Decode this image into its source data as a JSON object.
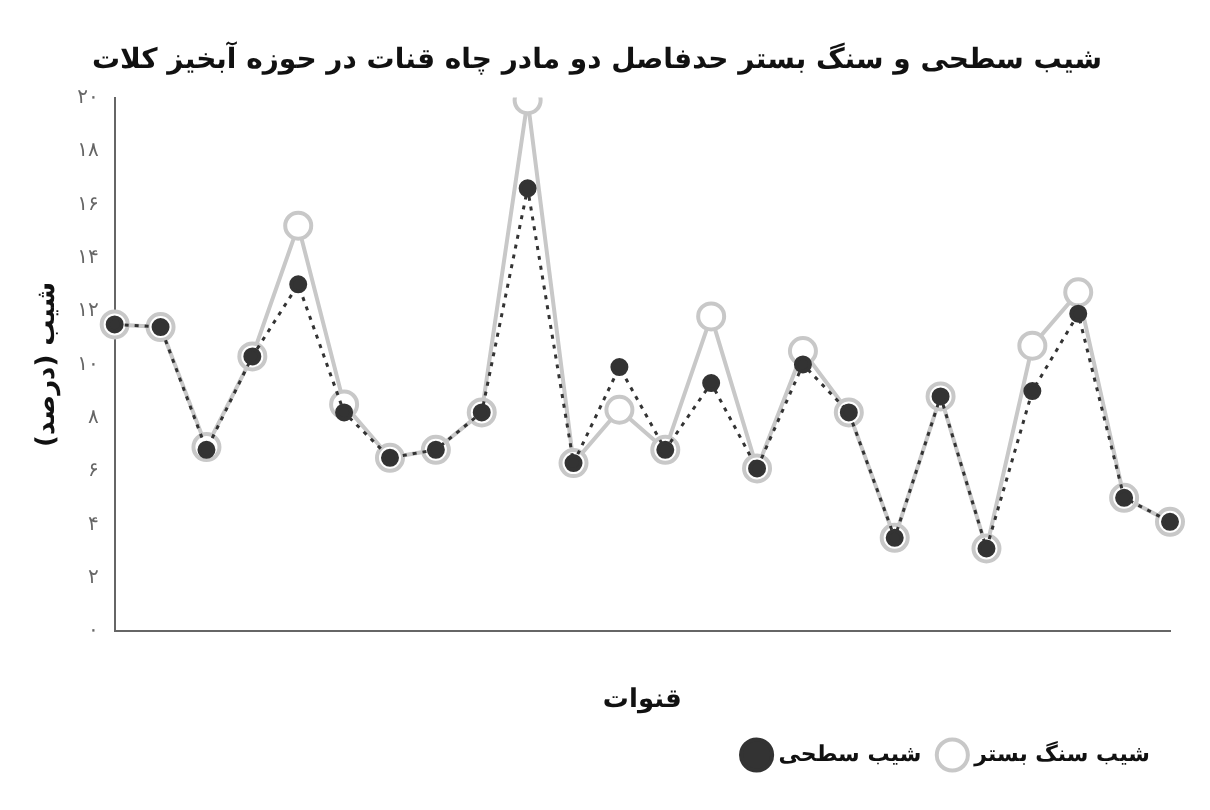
{
  "chart_data": {
    "type": "line",
    "title": "شیب سطحی و سنگ بستر حدفاصل دو مادر چاه قنات در حوزه آبخیز کلات",
    "xlabel": "قنوات",
    "ylabel": "شیب (درصد)",
    "categories": [
      null,
      null,
      null,
      null,
      null,
      null,
      null,
      null,
      null,
      null,
      null,
      null,
      null,
      null,
      null,
      null,
      null,
      null,
      null,
      null,
      null,
      null,
      null,
      null
    ],
    "series": [
      {
        "name": "شیب سنگ بستر",
        "color": "#c8c8c8",
        "line_style": "solid",
        "values": [
          11.5,
          11.4,
          6.9,
          10.3,
          15.2,
          8.5,
          6.5,
          6.8,
          8.2,
          19.9,
          6.3,
          8.3,
          6.8,
          11.8,
          6.1,
          10.5,
          8.2,
          3.5,
          8.8,
          3.1,
          10.7,
          12.7,
          5.0,
          4.1
        ]
      },
      {
        "name": "شیب سطحی",
        "color": "#333333",
        "line_style": "dotted",
        "values": [
          11.5,
          11.4,
          6.8,
          10.3,
          13.0,
          8.2,
          6.5,
          6.8,
          8.2,
          16.6,
          6.3,
          9.9,
          6.8,
          9.3,
          6.1,
          10.0,
          8.2,
          3.5,
          8.8,
          3.1,
          9.0,
          11.9,
          5.0,
          4.1
        ]
      }
    ],
    "ylim": [
      0,
      20
    ],
    "yticks": [
      {
        "value": 0,
        "label": "۰"
      },
      {
        "value": 2,
        "label": "۲"
      },
      {
        "value": 4,
        "label": "۴"
      },
      {
        "value": 6,
        "label": "۶"
      },
      {
        "value": 8,
        "label": "۸"
      },
      {
        "value": 10,
        "label": "۱۰"
      },
      {
        "value": 12,
        "label": "۱۲"
      },
      {
        "value": 14,
        "label": "۱۴"
      },
      {
        "value": 16,
        "label": "۱۶"
      },
      {
        "value": 18,
        "label": "۱۸"
      },
      {
        "value": 20,
        "label": "۲۰"
      }
    ],
    "grid": false,
    "legend": "bottom right",
    "marker": "circle"
  }
}
